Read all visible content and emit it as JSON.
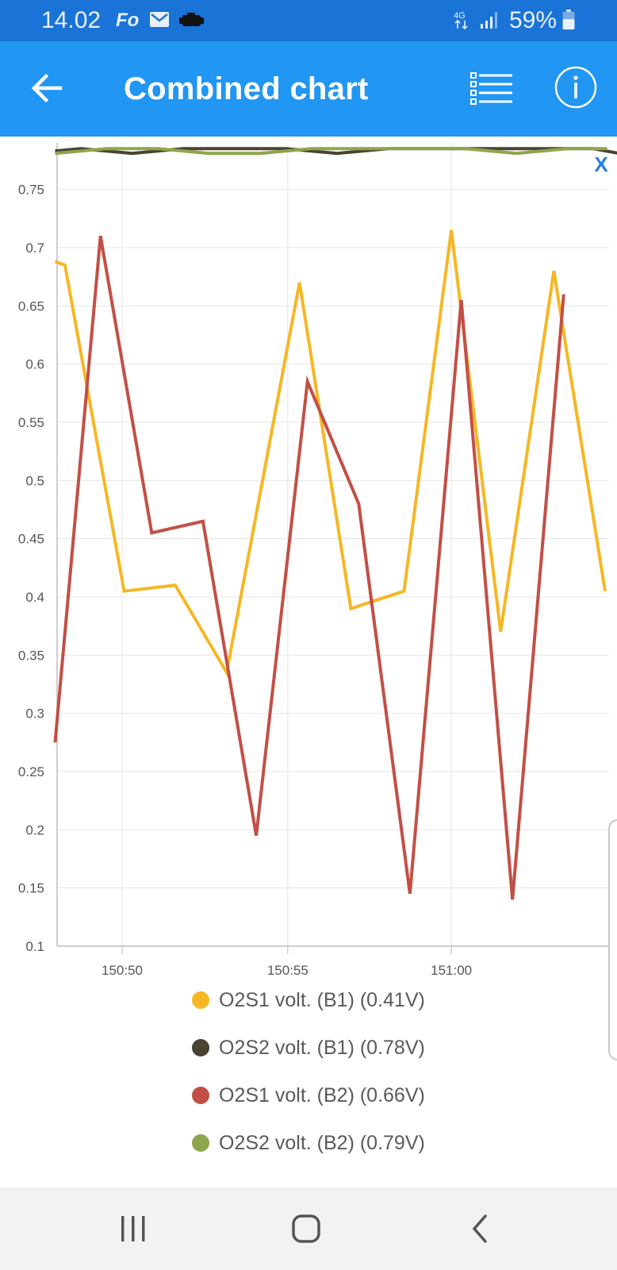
{
  "status_bar": {
    "time": "14.02",
    "battery": "59%",
    "network": "4G",
    "icons": [
      "fo-icon",
      "mail-icon",
      "engine-icon",
      "signal-icon",
      "battery-icon"
    ]
  },
  "app_bar": {
    "title": "Combined chart",
    "icons": [
      "back-arrow-icon",
      "list-icon",
      "info-icon"
    ]
  },
  "colors": {
    "status_bar": "#1a73d6",
    "app_bar": "#2196f3",
    "o2s1_b1": "#f5b724",
    "o2s2_b1": "#4a4232",
    "o2s1_b2": "#c24f45",
    "o2s2_b2": "#8ea64b",
    "close_x": "#2a7de1"
  },
  "chart_data": {
    "type": "line",
    "x_ticks": [
      "150:50",
      "150:55",
      "151:00"
    ],
    "x_tick_values": [
      150.833,
      150.917,
      151.0
    ],
    "xlim": [
      150.8,
      151.08
    ],
    "y_ticks": [
      "0.1",
      "0.15",
      "0.2",
      "0.25",
      "0.3",
      "0.35",
      "0.4",
      "0.45",
      "0.5",
      "0.55",
      "0.6",
      "0.65",
      "0.7",
      "0.75"
    ],
    "ylim": [
      0.1,
      0.79
    ],
    "grid": true,
    "legend_position": "bottom",
    "close_label": "X",
    "series": [
      {
        "name": "O2S1 volt. (B1) (0.41V)",
        "color": "#f5b724",
        "x": [
          150.799,
          150.804,
          150.834,
          150.86,
          150.886,
          150.923,
          150.949,
          150.976,
          151.0,
          151.025,
          151.052,
          151.078
        ],
        "y": [
          0.688,
          0.685,
          0.405,
          0.41,
          0.335,
          0.67,
          0.39,
          0.405,
          0.715,
          0.37,
          0.68,
          0.405
        ]
      },
      {
        "name": "O2S2 volt. (B1) (0.78V)",
        "color": "#4a4232",
        "x": [
          150.799,
          150.812,
          150.838,
          150.864,
          150.89,
          150.916,
          150.942,
          150.968,
          150.994,
          151.02,
          151.046,
          151.072,
          151.085
        ],
        "y": [
          0.783,
          0.785,
          0.781,
          0.785,
          0.785,
          0.785,
          0.781,
          0.785,
          0.785,
          0.785,
          0.785,
          0.785,
          0.781
        ]
      },
      {
        "name": "O2S1 volt. (B2) (0.66V)",
        "color": "#c24f45",
        "x": [
          150.799,
          150.822,
          150.848,
          150.874,
          150.901,
          150.927,
          150.953,
          150.979,
          151.005,
          151.031,
          151.057
        ],
        "y": [
          0.275,
          0.71,
          0.455,
          0.465,
          0.195,
          0.585,
          0.48,
          0.145,
          0.655,
          0.14,
          0.66
        ]
      },
      {
        "name": "O2S2 volt. (B2) (0.79V)",
        "color": "#8ea64b",
        "x": [
          150.799,
          150.825,
          150.851,
          150.877,
          150.903,
          150.929,
          150.955,
          150.981,
          151.007,
          151.033,
          151.059,
          151.079
        ],
        "y": [
          0.781,
          0.785,
          0.785,
          0.781,
          0.781,
          0.785,
          0.785,
          0.785,
          0.785,
          0.781,
          0.785,
          0.785
        ]
      }
    ]
  },
  "nav_bar": {
    "icons": [
      "recent-apps-icon",
      "home-icon",
      "back-icon"
    ]
  }
}
